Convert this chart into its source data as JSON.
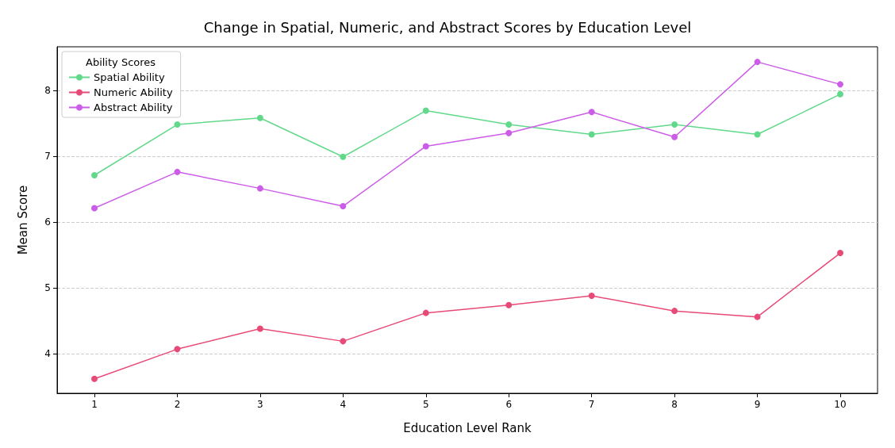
{
  "chart_data": {
    "type": "line",
    "title": "Change in Spatial, Numeric, and Abstract Scores by Education Level",
    "xlabel": "Education Level Rank",
    "ylabel": "Mean Score",
    "legend_title": "Ability Scores",
    "legend": "top left",
    "grid": "y",
    "marker": "circle",
    "line_style": "solid",
    "x": [
      1,
      2,
      3,
      4,
      5,
      6,
      7,
      8,
      9,
      10
    ],
    "xlim": [
      0.55,
      10.45
    ],
    "xticks": [
      1,
      2,
      3,
      4,
      5,
      6,
      7,
      8,
      9,
      10
    ],
    "ylim": [
      3.4,
      8.66
    ],
    "yticks": [
      4,
      5,
      6,
      7,
      8
    ],
    "series": [
      {
        "name": "Spatial Ability",
        "color": "#62d98a",
        "values": [
          6.71,
          7.48,
          7.58,
          6.99,
          7.69,
          7.48,
          7.33,
          7.48,
          7.33,
          7.94
        ]
      },
      {
        "name": "Numeric Ability",
        "color": "#e84a77",
        "values": [
          3.62,
          4.07,
          4.38,
          4.19,
          4.62,
          4.74,
          4.88,
          4.65,
          4.56,
          5.53
        ]
      },
      {
        "name": "Abstract Ability",
        "color": "#cc5de8",
        "values": [
          6.21,
          6.76,
          6.51,
          6.24,
          7.15,
          7.35,
          7.67,
          7.29,
          8.43,
          8.09
        ]
      }
    ]
  }
}
